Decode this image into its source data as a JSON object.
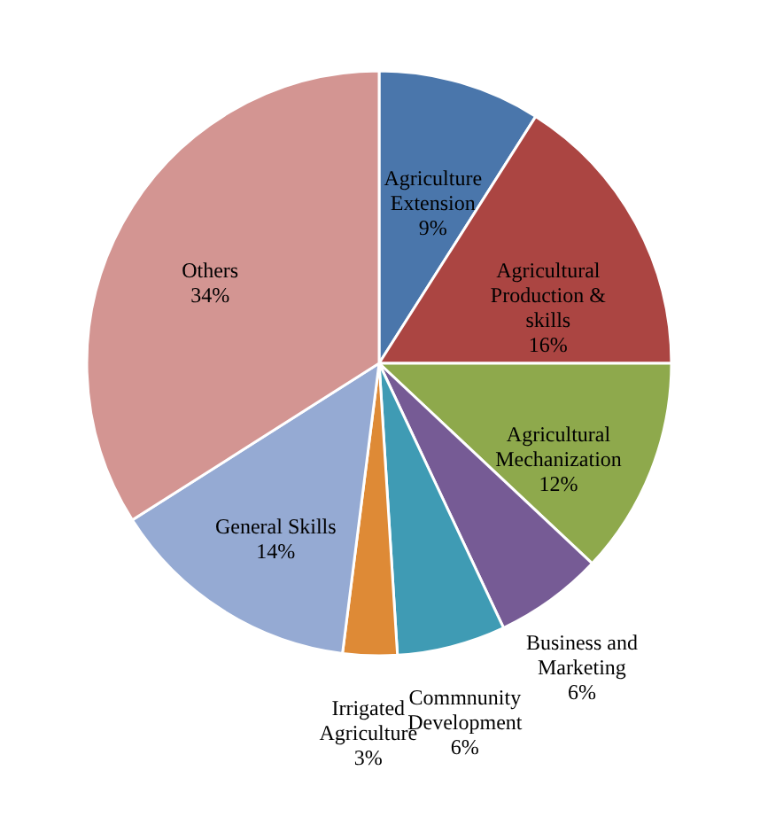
{
  "chart_data": {
    "type": "pie",
    "categories": [
      "Agriculture Extension",
      "Agricultural Production & skills",
      "Agricultural Mechanization",
      "Business and Marketing",
      "Commnunity Development",
      "Irrigated Agriculture",
      "General Skills",
      "Others"
    ],
    "values": [
      9,
      16,
      12,
      6,
      6,
      3,
      14,
      34
    ],
    "colors": [
      "#4a76ab",
      "#ab4542",
      "#8ea94c",
      "#765b95",
      "#3f9bb4",
      "#de8a36",
      "#95aad3",
      "#d39592"
    ],
    "value_labels": [
      "9%",
      "16%",
      "12%",
      "6%",
      "6%",
      "3%",
      "14%",
      "34%"
    ],
    "legend": false
  }
}
